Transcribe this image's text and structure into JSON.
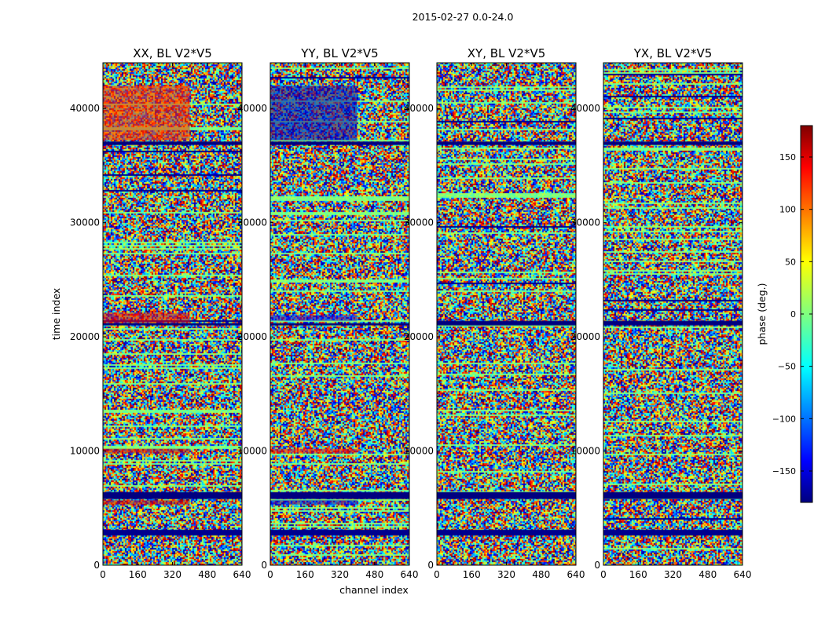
{
  "figure": {
    "suptitle": "2015-02-27 0.0-24.0",
    "xlabel": "channel index",
    "ylabel": "time index"
  },
  "colorbar": {
    "label": "phase (deg.)",
    "range": [
      -180,
      180
    ],
    "ticks": [
      150,
      100,
      50,
      0,
      -50,
      -100,
      -150
    ],
    "tick_labels": [
      "150",
      "100",
      "50",
      "0",
      "−50",
      "−100",
      "−150"
    ],
    "colormap": "jet",
    "colors": [
      "#00007f",
      "#0000ff",
      "#00ffff",
      "#7fff7f",
      "#ffff00",
      "#ff0000",
      "#7f0000"
    ]
  },
  "chart_data": [
    {
      "type": "heatmap",
      "title": "XX, BL V2*V5",
      "xlabel": "channel index",
      "ylabel": "time index",
      "xlim": [
        0,
        640
      ],
      "ylim": [
        0,
        44000
      ],
      "xticks": [
        0,
        160,
        320,
        480,
        640
      ],
      "yticks": [
        0,
        10000,
        20000,
        30000,
        40000
      ],
      "xtick_labels": [
        "0",
        "160",
        "320",
        "480",
        "640"
      ],
      "ytick_labels": [
        "0",
        "10000",
        "20000",
        "30000",
        "40000"
      ],
      "value": "phase (deg.)",
      "coherent_bands": [
        {
          "t0": 37200,
          "t1": 42000,
          "c0": 0,
          "c1": 400,
          "phase": 120
        },
        {
          "t0": 21200,
          "t1": 22100,
          "c0": 0,
          "c1": 400,
          "phase": 140
        },
        {
          "t0": 9800,
          "t1": 10200,
          "c0": 0,
          "c1": 400,
          "phase": 150
        },
        {
          "t0": 5300,
          "t1": 5700,
          "c0": 0,
          "c1": 400,
          "phase": 150
        }
      ],
      "blank_rows": [
        {
          "t0": 36800,
          "t1": 37100,
          "phase": -180
        },
        {
          "t0": 5800,
          "t1": 6400,
          "phase": -180
        },
        {
          "t0": 2600,
          "t1": 3100,
          "phase": -175
        },
        {
          "t0": 21000,
          "t1": 21200,
          "phase": -180
        }
      ]
    },
    {
      "type": "heatmap",
      "title": "YY, BL V2*V5",
      "xlabel": "channel index",
      "ylabel": "time index",
      "xlim": [
        0,
        640
      ],
      "ylim": [
        0,
        44000
      ],
      "xticks": [
        0,
        160,
        320,
        480,
        640
      ],
      "yticks": [
        0,
        10000,
        20000,
        30000,
        40000
      ],
      "xtick_labels": [
        "0",
        "160",
        "320",
        "480",
        "640"
      ],
      "ytick_labels": [
        "0",
        "10000",
        "20000",
        "30000",
        "40000"
      ],
      "value": "phase (deg.)",
      "coherent_bands": [
        {
          "t0": 37200,
          "t1": 42000,
          "c0": 0,
          "c1": 400,
          "phase": -160
        },
        {
          "t0": 21400,
          "t1": 21900,
          "c0": 0,
          "c1": 400,
          "phase": -140
        },
        {
          "t0": 9800,
          "t1": 10200,
          "c0": 0,
          "c1": 400,
          "phase": 130
        },
        {
          "t0": 5300,
          "t1": 5700,
          "c0": 0,
          "c1": 400,
          "phase": -150
        }
      ],
      "blank_rows": [
        {
          "t0": 36800,
          "t1": 37100,
          "phase": -180
        },
        {
          "t0": 5800,
          "t1": 6400,
          "phase": -180
        },
        {
          "t0": 2600,
          "t1": 3100,
          "phase": -175
        },
        {
          "t0": 21000,
          "t1": 21200,
          "phase": -180
        }
      ]
    },
    {
      "type": "heatmap",
      "title": "XY, BL V2*V5",
      "xlabel": "channel index",
      "ylabel": "time index",
      "xlim": [
        0,
        640
      ],
      "ylim": [
        0,
        44000
      ],
      "xticks": [
        0,
        160,
        320,
        480,
        640
      ],
      "yticks": [
        0,
        10000,
        20000,
        30000,
        40000
      ],
      "xtick_labels": [
        "0",
        "160",
        "320",
        "480",
        "640"
      ],
      "ytick_labels": [
        "0",
        "10000",
        "20000",
        "30000",
        "40000"
      ],
      "value": "phase (deg.)",
      "coherent_bands": [],
      "blank_rows": [
        {
          "t0": 36800,
          "t1": 37100,
          "phase": -180
        },
        {
          "t0": 5800,
          "t1": 6400,
          "phase": -180
        },
        {
          "t0": 2600,
          "t1": 3100,
          "phase": -175
        },
        {
          "t0": 21000,
          "t1": 21400,
          "phase": -180
        }
      ]
    },
    {
      "type": "heatmap",
      "title": "YX, BL V2*V5",
      "xlabel": "channel index",
      "ylabel": "time index",
      "xlim": [
        0,
        640
      ],
      "ylim": [
        0,
        44000
      ],
      "xticks": [
        0,
        160,
        320,
        480,
        640
      ],
      "yticks": [
        0,
        10000,
        20000,
        30000,
        40000
      ],
      "xtick_labels": [
        "0",
        "160",
        "320",
        "480",
        "640"
      ],
      "ytick_labels": [
        "0",
        "10000",
        "20000",
        "30000",
        "40000"
      ],
      "value": "phase (deg.)",
      "coherent_bands": [],
      "blank_rows": [
        {
          "t0": 36800,
          "t1": 37100,
          "phase": -180
        },
        {
          "t0": 5800,
          "t1": 6400,
          "phase": -180
        },
        {
          "t0": 2600,
          "t1": 3100,
          "phase": -175
        },
        {
          "t0": 21000,
          "t1": 21400,
          "phase": -180
        }
      ]
    }
  ]
}
